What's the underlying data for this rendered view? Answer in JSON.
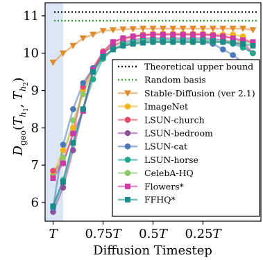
{
  "chart_data": {
    "type": "line",
    "xlabel": "Diffusion Timestep",
    "ylabel": "D_geo(T_h1, T_h2)",
    "x_tick_labels": [
      "T",
      "0.75T",
      "0.5T",
      "0.25T"
    ],
    "x_tick_values": [
      1.0,
      0.75,
      0.5,
      0.25
    ],
    "x_axis_reversed": true,
    "xlim": [
      1.04,
      -0.04
    ],
    "ylim": [
      5.5,
      11.35
    ],
    "y_ticks": [
      6,
      7,
      8,
      9,
      10,
      11
    ],
    "shaded_region": {
      "from": 1.04,
      "to": 0.95,
      "color": "#dbe7f5"
    },
    "hlines": [
      {
        "name": "Theoretical upper bound",
        "value": 11.1,
        "color": "#000000",
        "style": "dotted"
      },
      {
        "name": "Random basis",
        "value": 10.87,
        "color": "#2ca02c",
        "style": "dotted"
      }
    ],
    "x": [
      1.0,
      0.95,
      0.9,
      0.85,
      0.8,
      0.75,
      0.7,
      0.65,
      0.6,
      0.55,
      0.5,
      0.45,
      0.4,
      0.35,
      0.3,
      0.25,
      0.2,
      0.15,
      0.1,
      0.05,
      0.0
    ],
    "series": [
      {
        "name": "Stable-Diffusion (ver 2.1)",
        "color": "#e08a2e",
        "marker": "triangle-down",
        "values": [
          9.75,
          10.0,
          10.2,
          10.4,
          10.5,
          10.6,
          10.62,
          10.64,
          10.65,
          10.66,
          10.66,
          10.66,
          10.66,
          10.66,
          10.66,
          10.66,
          10.66,
          10.66,
          10.66,
          10.66,
          10.62
        ]
      },
      {
        "name": "ImageNet",
        "color": "#f4b41a",
        "marker": "circle",
        "values": [
          6.75,
          7.4,
          8.0,
          9.0,
          9.6,
          10.0,
          10.2,
          10.35,
          10.45,
          10.5,
          10.52,
          10.52,
          10.52,
          10.52,
          10.52,
          10.52,
          10.5,
          10.5,
          10.5,
          10.45,
          10.2
        ]
      },
      {
        "name": "LSUN-church",
        "color": "#e24a6a",
        "marker": "circle",
        "values": [
          6.85,
          7.05,
          7.85,
          9.1,
          9.6,
          10.05,
          10.3,
          10.4,
          10.45,
          10.48,
          10.5,
          10.5,
          10.5,
          10.5,
          10.5,
          10.5,
          10.48,
          10.45,
          10.4,
          10.3,
          10.0
        ]
      },
      {
        "name": "LSUN-bedroom",
        "color": "#8e4f9b",
        "marker": "circle",
        "values": [
          5.75,
          6.4,
          7.4,
          8.5,
          9.5,
          10.0,
          10.2,
          10.3,
          10.35,
          10.4,
          10.4,
          10.4,
          10.4,
          10.4,
          10.4,
          10.4,
          10.38,
          10.35,
          10.3,
          10.2,
          10.0
        ]
      },
      {
        "name": "LSUN-cat",
        "color": "#4a78b8",
        "marker": "circle",
        "values": [
          5.85,
          7.55,
          8.5,
          9.2,
          9.6,
          9.9,
          10.1,
          10.2,
          10.25,
          10.3,
          10.3,
          10.3,
          10.3,
          10.3,
          10.3,
          10.3,
          10.25,
          10.1,
          9.95,
          9.75,
          9.5
        ]
      },
      {
        "name": "LSUN-horse",
        "color": "#1fa88a",
        "marker": "circle",
        "values": [
          5.9,
          6.6,
          7.6,
          8.5,
          9.3,
          9.85,
          10.1,
          10.25,
          10.3,
          10.35,
          10.35,
          10.35,
          10.35,
          10.35,
          10.35,
          10.35,
          10.33,
          10.3,
          10.25,
          10.15,
          10.0
        ]
      },
      {
        "name": "CelebA-HQ",
        "color": "#8cc864",
        "marker": "circle",
        "values": [
          6.7,
          7.2,
          8.2,
          8.9,
          9.5,
          9.9,
          10.1,
          10.2,
          10.25,
          10.3,
          10.3,
          10.3,
          10.3,
          10.3,
          10.3,
          10.3,
          10.3,
          10.3,
          10.3,
          10.3,
          10.28
        ]
      },
      {
        "name": "Flowers*",
        "color": "#d03aa8",
        "marker": "square",
        "values": [
          6.65,
          7.05,
          7.85,
          8.45,
          9.55,
          10.0,
          10.3,
          10.4,
          10.45,
          10.48,
          10.5,
          10.5,
          10.5,
          10.5,
          10.5,
          10.5,
          10.48,
          10.45,
          10.4,
          10.35,
          10.3
        ]
      },
      {
        "name": "FFHQ*",
        "color": "#1a8a8a",
        "marker": "square",
        "values": [
          5.9,
          6.55,
          7.6,
          8.5,
          9.5,
          9.9,
          10.1,
          10.2,
          10.25,
          10.28,
          10.3,
          10.3,
          10.3,
          10.3,
          10.3,
          10.3,
          10.3,
          10.3,
          10.28,
          10.25,
          10.2
        ]
      }
    ]
  }
}
